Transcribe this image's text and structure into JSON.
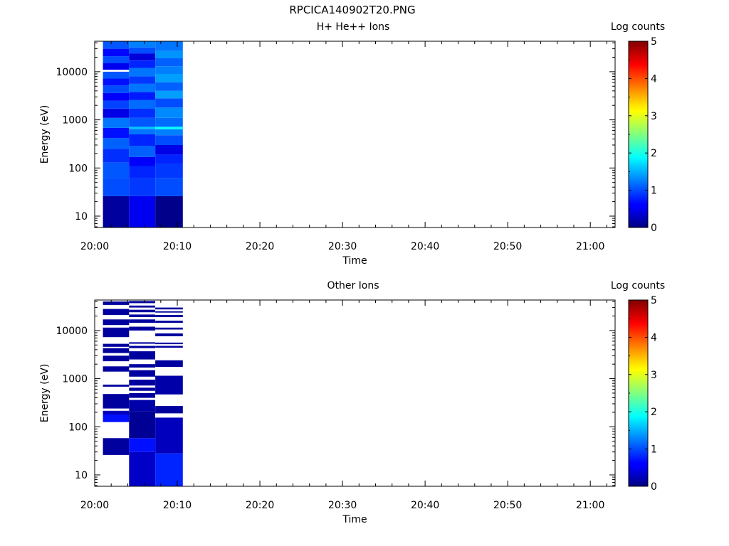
{
  "figure": {
    "title": "RPCICA140902T20.PNG"
  },
  "colorbar": {
    "label": "Log counts",
    "ticks": [
      "0",
      "1",
      "2",
      "3",
      "4",
      "5"
    ],
    "range": [
      0,
      5
    ],
    "colormap": "jet"
  },
  "chart_data": [
    {
      "type": "heatmap",
      "title": "H+ He++ Ions",
      "xlabel": "Time",
      "ylabel": "Energy (eV)",
      "x_ticks": [
        "20:00",
        "20:10",
        "20:20",
        "20:30",
        "20:40",
        "20:50",
        "21:00"
      ],
      "xlim": [
        "20:00",
        "21:03"
      ],
      "y_ticks": [
        "10",
        "100",
        "1000",
        "10000"
      ],
      "ylim": [
        5.8,
        43000
      ],
      "y_scale": "log",
      "colorbar_label": "Log counts",
      "color_range": [
        0,
        5
      ],
      "time_bins": [
        {
          "start": "20:01:00",
          "end": "20:04:10"
        },
        {
          "start": "20:04:10",
          "end": "20:07:20"
        },
        {
          "start": "20:07:20",
          "end": "20:10:40"
        }
      ],
      "columns": [
        {
          "segments": [
            {
              "e_low": 5.8,
              "e_high": 26,
              "value": 0.15
            },
            {
              "e_low": 26,
              "e_high": 62,
              "value": 1.0
            },
            {
              "e_low": 62,
              "e_high": 130,
              "value": 1.05
            },
            {
              "e_low": 130,
              "e_high": 250,
              "value": 0.85
            },
            {
              "e_low": 250,
              "e_high": 420,
              "value": 1.1
            },
            {
              "e_low": 420,
              "e_high": 680,
              "value": 0.7
            },
            {
              "e_low": 680,
              "e_high": 1100,
              "value": 1.2
            },
            {
              "e_low": 1100,
              "e_high": 1700,
              "value": 0.5
            },
            {
              "e_low": 1700,
              "e_high": 2500,
              "value": 0.95
            },
            {
              "e_low": 2500,
              "e_high": 3600,
              "value": 0.6
            },
            {
              "e_low": 3600,
              "e_high": 5200,
              "value": 1.0
            },
            {
              "e_low": 5200,
              "e_high": 7200,
              "value": 0.7
            },
            {
              "e_low": 7200,
              "e_high": 10000,
              "value": 1.05
            },
            {
              "e_low": 10000,
              "e_high": 11000,
              "value": null
            },
            {
              "e_low": 11000,
              "e_high": 15000,
              "value": 0.55
            },
            {
              "e_low": 15000,
              "e_high": 21000,
              "value": 1.0
            },
            {
              "e_low": 21000,
              "e_high": 30000,
              "value": 0.65
            },
            {
              "e_low": 30000,
              "e_high": 43000,
              "value": 1.05
            }
          ]
        },
        {
          "segments": [
            {
              "e_low": 5.8,
              "e_high": 26,
              "value": 0.55
            },
            {
              "e_low": 26,
              "e_high": 62,
              "value": 0.9
            },
            {
              "e_low": 62,
              "e_high": 110,
              "value": 0.8
            },
            {
              "e_low": 110,
              "e_high": 170,
              "value": 0.6
            },
            {
              "e_low": 170,
              "e_high": 290,
              "value": 1.1
            },
            {
              "e_low": 290,
              "e_high": 500,
              "value": 0.8
            },
            {
              "e_low": 500,
              "e_high": 650,
              "value": 1.2
            },
            {
              "e_low": 650,
              "e_high": 720,
              "value": 1.6
            },
            {
              "e_low": 720,
              "e_high": 1100,
              "value": 1.05
            },
            {
              "e_low": 1100,
              "e_high": 1700,
              "value": 0.85
            },
            {
              "e_low": 1700,
              "e_high": 2600,
              "value": 1.15
            },
            {
              "e_low": 2600,
              "e_high": 3800,
              "value": 0.75
            },
            {
              "e_low": 3800,
              "e_high": 5600,
              "value": 1.2
            },
            {
              "e_low": 5600,
              "e_high": 8000,
              "value": 0.9
            },
            {
              "e_low": 8000,
              "e_high": 12000,
              "value": 1.2
            },
            {
              "e_low": 12000,
              "e_high": 17000,
              "value": 0.8
            },
            {
              "e_low": 17000,
              "e_high": 24000,
              "value": 0.45
            },
            {
              "e_low": 24000,
              "e_high": 32000,
              "value": 1.0
            },
            {
              "e_low": 32000,
              "e_high": 43000,
              "value": 1.25
            }
          ]
        },
        {
          "segments": [
            {
              "e_low": 5.8,
              "e_high": 26,
              "value": 0.05
            },
            {
              "e_low": 26,
              "e_high": 62,
              "value": 1.0
            },
            {
              "e_low": 62,
              "e_high": 120,
              "value": 0.9
            },
            {
              "e_low": 120,
              "e_high": 190,
              "value": 0.8
            },
            {
              "e_low": 190,
              "e_high": 300,
              "value": 0.5
            },
            {
              "e_low": 300,
              "e_high": 480,
              "value": 1.0
            },
            {
              "e_low": 480,
              "e_high": 640,
              "value": 1.25
            },
            {
              "e_low": 640,
              "e_high": 720,
              "value": 1.9
            },
            {
              "e_low": 720,
              "e_high": 1100,
              "value": 1.15
            },
            {
              "e_low": 1100,
              "e_high": 1800,
              "value": 1.3
            },
            {
              "e_low": 1800,
              "e_high": 2800,
              "value": 1.0
            },
            {
              "e_low": 2800,
              "e_high": 4000,
              "value": 1.4
            },
            {
              "e_low": 4000,
              "e_high": 6000,
              "value": 1.1
            },
            {
              "e_low": 6000,
              "e_high": 9000,
              "value": 1.4
            },
            {
              "e_low": 9000,
              "e_high": 13000,
              "value": 1.25
            },
            {
              "e_low": 13000,
              "e_high": 19000,
              "value": 1.1
            },
            {
              "e_low": 19000,
              "e_high": 27000,
              "value": 1.35
            },
            {
              "e_low": 27000,
              "e_high": 43000,
              "value": 1.2
            }
          ]
        }
      ]
    },
    {
      "type": "heatmap",
      "title": "Other Ions",
      "xlabel": "Time",
      "ylabel": "Energy (eV)",
      "x_ticks": [
        "20:00",
        "20:10",
        "20:20",
        "20:30",
        "20:40",
        "20:50",
        "21:00"
      ],
      "xlim": [
        "20:00",
        "21:03"
      ],
      "y_ticks": [
        "10",
        "100",
        "1000",
        "10000"
      ],
      "ylim": [
        5.8,
        43000
      ],
      "y_scale": "log",
      "colorbar_label": "Log counts",
      "color_range": [
        0,
        5
      ],
      "time_bins": [
        {
          "start": "20:01:00",
          "end": "20:04:10"
        },
        {
          "start": "20:04:10",
          "end": "20:07:20"
        },
        {
          "start": "20:07:20",
          "end": "20:10:40"
        }
      ],
      "columns": [
        {
          "segments": [
            {
              "e_low": 26,
              "e_high": 58,
              "value": 0.15
            },
            {
              "e_low": 125,
              "e_high": 180,
              "value": 0.7
            },
            {
              "e_low": 180,
              "e_high": 215,
              "value": 0.3
            },
            {
              "e_low": 240,
              "e_high": 480,
              "value": 0.15
            },
            {
              "e_low": 680,
              "e_high": 750,
              "value": 0.15
            },
            {
              "e_low": 1400,
              "e_high": 1800,
              "value": 0.15
            },
            {
              "e_low": 2300,
              "e_high": 3000,
              "value": 0.15
            },
            {
              "e_low": 3400,
              "e_high": 4300,
              "value": 0.15
            },
            {
              "e_low": 4600,
              "e_high": 5300,
              "value": 0.15
            },
            {
              "e_low": 7300,
              "e_high": 11500,
              "value": 0.15
            },
            {
              "e_low": 13000,
              "e_high": 17000,
              "value": 0.15
            },
            {
              "e_low": 21000,
              "e_high": 28000,
              "value": 0.15
            },
            {
              "e_low": 34000,
              "e_high": 40000,
              "value": 0.15
            }
          ]
        },
        {
          "segments": [
            {
              "e_low": 5.8,
              "e_high": 30,
              "value": 0.35
            },
            {
              "e_low": 30,
              "e_high": 58,
              "value": 0.7
            },
            {
              "e_low": 58,
              "e_high": 210,
              "value": 0.1
            },
            {
              "e_low": 210,
              "e_high": 360,
              "value": 0.2
            },
            {
              "e_low": 400,
              "e_high": 500,
              "value": 0.15
            },
            {
              "e_low": 560,
              "e_high": 650,
              "value": 0.15
            },
            {
              "e_low": 720,
              "e_high": 950,
              "value": 0.15
            },
            {
              "e_low": 1100,
              "e_high": 1500,
              "value": 0.15
            },
            {
              "e_low": 1700,
              "e_high": 2000,
              "value": 0.15
            },
            {
              "e_low": 2500,
              "e_high": 3700,
              "value": 0.15
            },
            {
              "e_low": 4300,
              "e_high": 4800,
              "value": 0.15
            },
            {
              "e_low": 5300,
              "e_high": 5700,
              "value": 0.15
            },
            {
              "e_low": 10000,
              "e_high": 12000,
              "value": 0.15
            },
            {
              "e_low": 14500,
              "e_high": 17000,
              "value": 0.15
            },
            {
              "e_low": 19000,
              "e_high": 21500,
              "value": 0.15
            },
            {
              "e_low": 24000,
              "e_high": 27000,
              "value": 0.15
            },
            {
              "e_low": 30000,
              "e_high": 33000,
              "value": 0.15
            },
            {
              "e_low": 37000,
              "e_high": 41000,
              "value": 0.15
            }
          ]
        },
        {
          "segments": [
            {
              "e_low": 5.8,
              "e_high": 28,
              "value": 0.8
            },
            {
              "e_low": 28,
              "e_high": 155,
              "value": 0.3
            },
            {
              "e_low": 190,
              "e_high": 270,
              "value": 0.15
            },
            {
              "e_low": 470,
              "e_high": 1150,
              "value": 0.2
            },
            {
              "e_low": 1750,
              "e_high": 2400,
              "value": 0.15
            },
            {
              "e_low": 4400,
              "e_high": 4800,
              "value": 0.15
            },
            {
              "e_low": 5200,
              "e_high": 5600,
              "value": 0.15
            },
            {
              "e_low": 7600,
              "e_high": 8700,
              "value": 0.15
            },
            {
              "e_low": 10500,
              "e_high": 11500,
              "value": 0.15
            },
            {
              "e_low": 14500,
              "e_high": 16000,
              "value": 0.15
            },
            {
              "e_low": 19000,
              "e_high": 21000,
              "value": 0.15
            },
            {
              "e_low": 23500,
              "e_high": 25000,
              "value": 0.15
            },
            {
              "e_low": 27500,
              "e_high": 30000,
              "value": 0.15
            }
          ]
        }
      ]
    }
  ]
}
